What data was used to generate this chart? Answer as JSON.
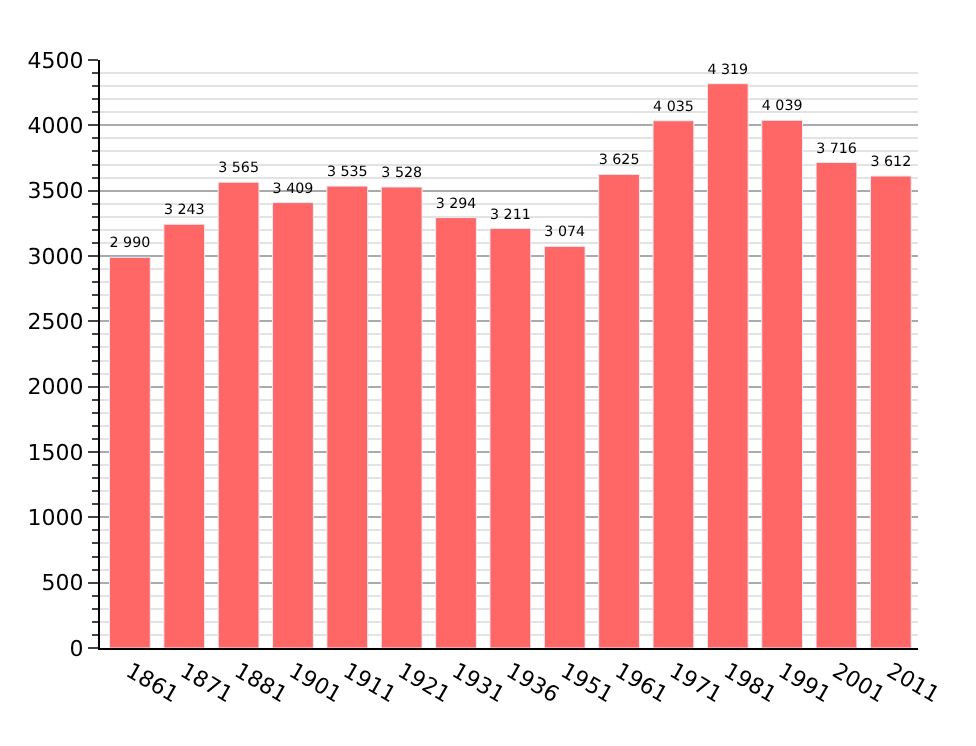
{
  "chart_data": {
    "type": "bar",
    "categories": [
      "1861",
      "1871",
      "1881",
      "1901",
      "1911",
      "1921",
      "1931",
      "1936",
      "1951",
      "1961",
      "1971",
      "1981",
      "1991",
      "2001",
      "2011"
    ],
    "values": [
      2990,
      3243,
      3565,
      3409,
      3535,
      3528,
      3294,
      3211,
      3074,
      3625,
      4035,
      4319,
      4039,
      3716,
      3612
    ],
    "value_labels": [
      "2 990",
      "3 243",
      "3 565",
      "3 409",
      "3 535",
      "3 528",
      "3 294",
      "3 211",
      "3 074",
      "3 625",
      "4 035",
      "4 319",
      "4 039",
      "3 716",
      "3 612"
    ],
    "color": "#ff6666",
    "ylim": [
      0,
      4500
    ],
    "yticks": [
      0,
      500,
      1000,
      1500,
      2000,
      2500,
      3000,
      3500,
      4000,
      4500
    ],
    "grid": "y",
    "legend": false
  }
}
